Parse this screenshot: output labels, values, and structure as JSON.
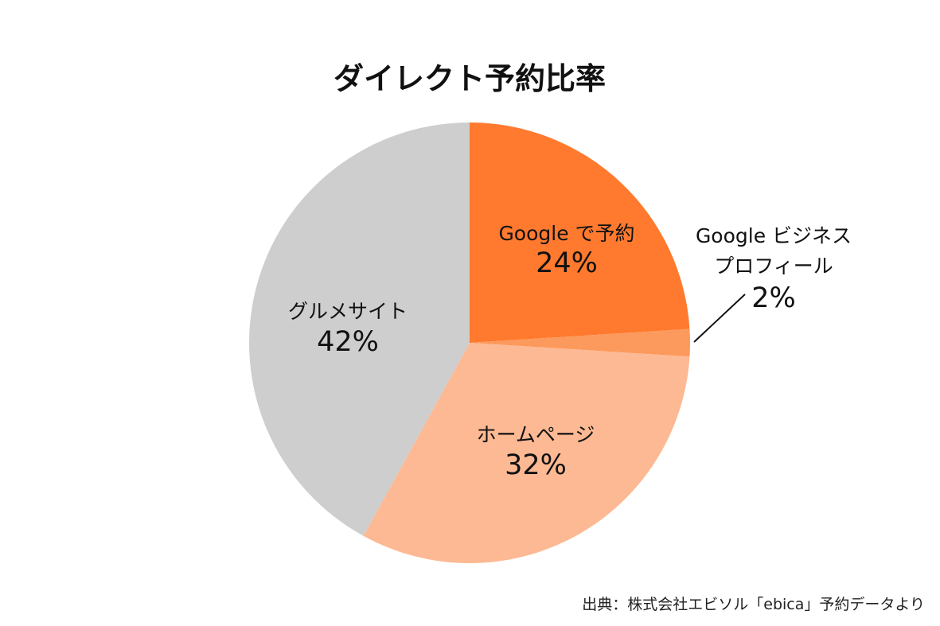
{
  "chart_data": {
    "type": "pie",
    "title": "ダイレクト予約比率",
    "start_angle_deg": 0,
    "direction": "clockwise",
    "legend": "none",
    "slices": [
      {
        "name": "Google で予約",
        "value": 24,
        "label": "24%",
        "color": "#FF7A2E"
      },
      {
        "name": "Google ビジネス\nプロフィール",
        "value": 2,
        "label": "2%",
        "color": "#FC9A5D"
      },
      {
        "name": "ホームページ",
        "value": 32,
        "label": "32%",
        "color": "#FDB993"
      },
      {
        "name": "グルメサイト",
        "value": 42,
        "label": "42%",
        "color": "#CECECE"
      }
    ],
    "source": "出典：株式会社エビソル「ebica」予約データより"
  }
}
